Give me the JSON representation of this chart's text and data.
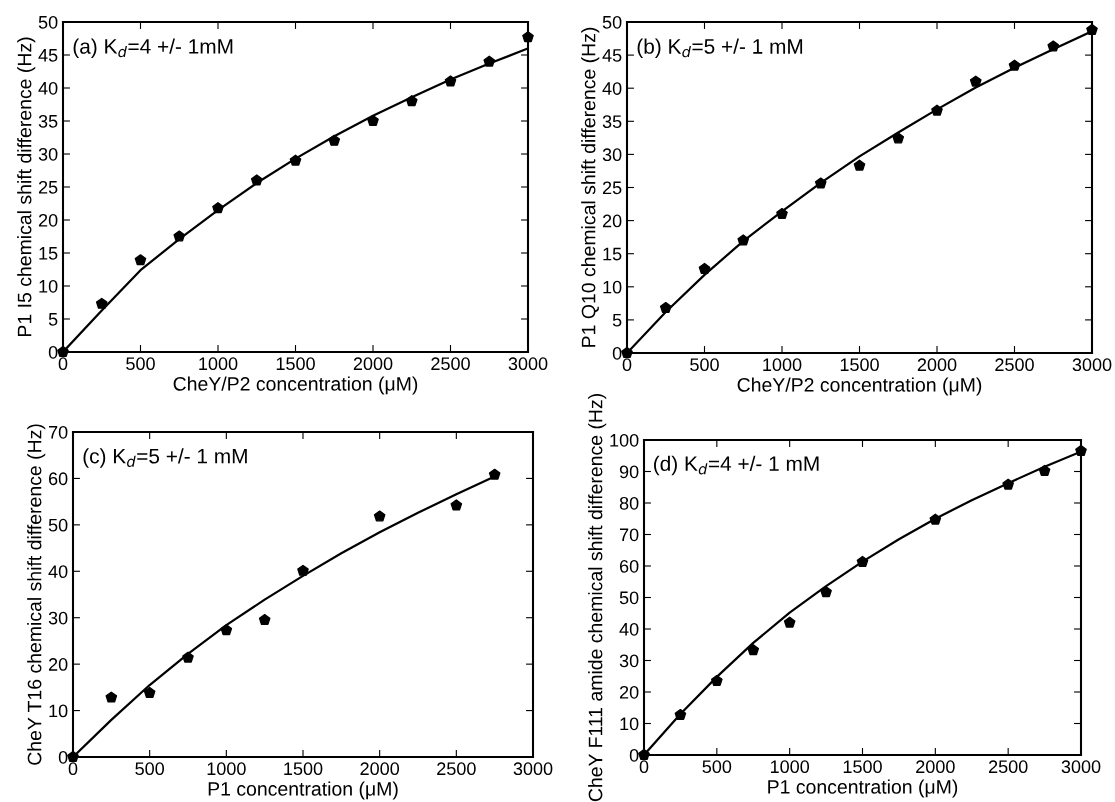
{
  "chart_data": [
    {
      "type": "scatter",
      "xlabel": "CheY/P2 concentration (μM)",
      "ylabel": "P1 I5 chemical shift difference (Hz)",
      "annotations": [
        "(a) K$_{d}$=4 +/- 1mM"
      ],
      "xlim": [
        0,
        3000
      ],
      "ylim": [
        0,
        50
      ],
      "xticks": [
        0,
        500,
        1000,
        1500,
        2000,
        2500,
        3000
      ],
      "yticks": [
        0,
        5,
        10,
        15,
        20,
        25,
        30,
        35,
        40,
        45,
        50
      ],
      "series": [
        {
          "color": "#000000",
          "x": [
            0,
            250,
            500,
            750,
            1000,
            1250,
            1500,
            1750,
            2000,
            2250,
            2500,
            2750,
            3000
          ],
          "values": [
            0,
            7.3,
            13.9,
            17.5,
            21.8,
            26,
            29,
            32,
            35,
            38,
            41,
            44,
            47.7
          ]
        },
        {
          "type": "line",
          "color": "#000000",
          "x": [
            0,
            250,
            500,
            750,
            1000,
            1250,
            1500,
            1750,
            2000,
            2250,
            2500,
            2750,
            3000
          ],
          "values": [
            0,
            6.3,
            12.4,
            17.1,
            21.5,
            25.6,
            29.3,
            32.7,
            35.8,
            38.6,
            41.3,
            43.7,
            46
          ]
        }
      ]
    },
    {
      "type": "scatter",
      "xlabel": "CheY/P2 concentration (μM)",
      "ylabel": "P1 Q10 chemical shift difference (Hz)",
      "annotations": [
        "(b) K$_{d}$=5 +/- 1 mM"
      ],
      "xlim": [
        0,
        3000
      ],
      "ylim": [
        0,
        50
      ],
      "xticks": [
        0,
        500,
        1000,
        1500,
        2000,
        2500,
        3000
      ],
      "yticks": [
        0,
        5,
        10,
        15,
        20,
        25,
        30,
        35,
        40,
        45,
        50
      ],
      "series": [
        {
          "color": "#000000",
          "x": [
            0,
            250,
            500,
            750,
            1000,
            1250,
            1500,
            1750,
            2000,
            2250,
            2500,
            2750,
            3000
          ],
          "values": [
            0,
            6.8,
            12.7,
            17,
            21,
            25.6,
            28.3,
            32.4,
            36.6,
            41,
            43.4,
            46.3,
            48.8
          ]
        },
        {
          "type": "line",
          "color": "#000000",
          "x": [
            0,
            250,
            500,
            750,
            1000,
            1250,
            1500,
            1750,
            2000,
            2250,
            2500,
            2750,
            3000
          ],
          "values": [
            0,
            6.2,
            11.8,
            16.9,
            21.4,
            25.7,
            29.7,
            33.3,
            36.8,
            40.1,
            43.1,
            45.9,
            48.6
          ]
        }
      ]
    },
    {
      "type": "scatter",
      "xlabel": "P1 concentration (μM)",
      "ylabel": "CheY T16 chemical shift difference (Hz)",
      "annotations": [
        "(c) K$_{d}$=5 +/- 1 mM"
      ],
      "xlim": [
        0,
        3000
      ],
      "ylim": [
        0,
        70
      ],
      "xticks": [
        0,
        500,
        1000,
        1500,
        2000,
        2500,
        3000
      ],
      "yticks": [
        0,
        10,
        20,
        30,
        40,
        50,
        60,
        70
      ],
      "series": [
        {
          "color": "#000000",
          "x": [
            0,
            250,
            500,
            750,
            1000,
            1250,
            1500,
            2000,
            2500,
            2750
          ],
          "values": [
            0,
            12.8,
            13.8,
            21.4,
            27.3,
            29.5,
            40.1,
            51.8,
            54.2,
            60.8
          ]
        },
        {
          "type": "line",
          "color": "#000000",
          "x": [
            0,
            250,
            500,
            750,
            1000,
            1250,
            1500,
            1750,
            2000,
            2250,
            2500,
            2750
          ],
          "values": [
            0,
            8,
            15.5,
            22.2,
            28.4,
            33.9,
            39,
            43.9,
            48.4,
            52.6,
            56.6,
            60.4
          ]
        }
      ]
    },
    {
      "type": "scatter",
      "xlabel": "P1 concentration (μM)",
      "ylabel": "CheY F111 amide chemical shift difference (Hz)",
      "annotations": [
        "(d) K$_{d}$=4 +/- 1 mM"
      ],
      "xlim": [
        0,
        3000
      ],
      "ylim": [
        0,
        100
      ],
      "xticks": [
        0,
        500,
        1000,
        1500,
        2000,
        2500,
        3000
      ],
      "yticks": [
        0,
        10,
        20,
        30,
        40,
        50,
        60,
        70,
        80,
        90,
        100
      ],
      "series": [
        {
          "color": "#000000",
          "x": [
            0,
            250,
            500,
            750,
            1000,
            1250,
            1500,
            2000,
            2500,
            2750,
            3000
          ],
          "values": [
            0,
            12.7,
            23.5,
            33.3,
            42,
            51.7,
            61.3,
            74.7,
            85.8,
            90.2,
            96.5
          ]
        },
        {
          "type": "line",
          "color": "#000000",
          "x": [
            0,
            250,
            500,
            750,
            1000,
            1250,
            1500,
            1750,
            2000,
            2250,
            2500,
            2750,
            3000
          ],
          "values": [
            0,
            13,
            24.8,
            35.6,
            45.2,
            53.6,
            61.4,
            68.5,
            75,
            80.9,
            86.3,
            91.5,
            96.3
          ]
        }
      ]
    }
  ]
}
